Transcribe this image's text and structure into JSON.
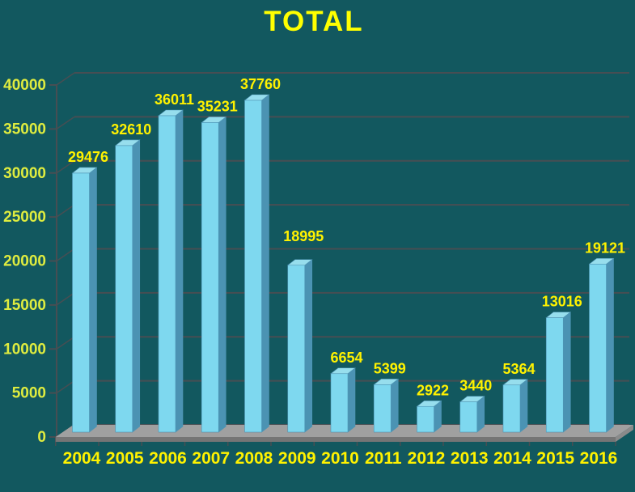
{
  "chart_data": {
    "type": "bar",
    "style": "3d-column",
    "title": "TOTAL",
    "categories": [
      "2004",
      "2005",
      "2006",
      "2007",
      "2008",
      "2009",
      "2010",
      "2011",
      "2012",
      "2013",
      "2014",
      "2015",
      "2016"
    ],
    "values": [
      29476,
      32610,
      36011,
      35231,
      37760,
      18995,
      6654,
      5399,
      2922,
      3440,
      5364,
      13016,
      19121
    ],
    "xlabel": "",
    "ylabel": "",
    "ylim": [
      0,
      40000
    ],
    "yticks": [
      0,
      5000,
      10000,
      15000,
      20000,
      25000,
      30000,
      35000,
      40000
    ],
    "grid": true,
    "legend": false,
    "label_dy": [
      0,
      0,
      0,
      0,
      0,
      -16,
      0,
      0,
      0,
      0,
      0,
      0,
      0
    ]
  },
  "colors": {
    "background": "#12585F",
    "title": "#FFFF00",
    "value_label": "#FFF200",
    "year_label": "#FFF200",
    "axis_label": "#DFEC3F",
    "grid": "#474E53",
    "bar_front": "#7ED8EF",
    "bar_top": "#97DEED",
    "bar_side": "#4B93B3",
    "bar_edge": "#4E95B5",
    "floor_top": "#A0A0A0",
    "floor_front": "#757575",
    "floor_side": "#8A8A8A"
  }
}
